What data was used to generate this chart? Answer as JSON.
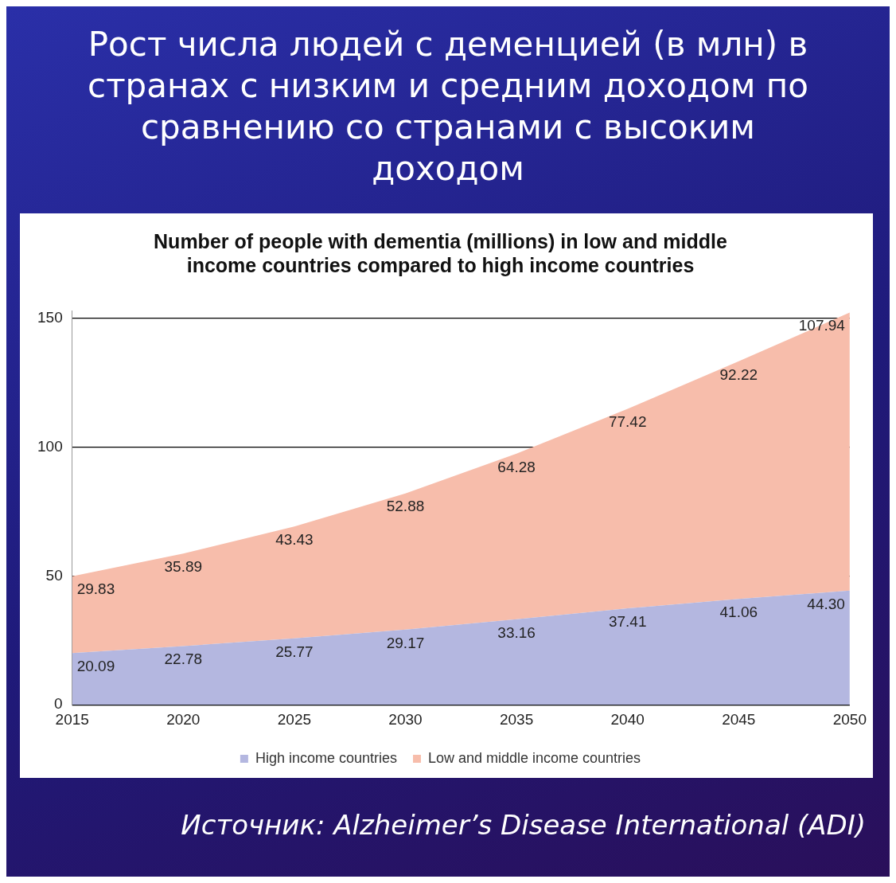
{
  "chart_data": {
    "type": "area",
    "title": "Рост числа людей с деменцией (в млн) в странах с низким и средним доходом по сравнению со странами с высоким доходом",
    "subtitle": "Number of people with dementia (millions) in low and middle income countries compared to high income countries",
    "annotations": [
      "Источник: Alzheimer’s Disease International (ADI)"
    ],
    "categories": [
      "2015",
      "2020",
      "2025",
      "2030",
      "2035",
      "2040",
      "2045",
      "2050"
    ],
    "stacked": true,
    "series": [
      {
        "name": "High income countries",
        "color": "#b4b7e0",
        "values": [
          20.09,
          22.78,
          25.77,
          29.17,
          33.16,
          37.41,
          41.06,
          44.3
        ],
        "value_labels": [
          "20.09",
          "22.78",
          "25.77",
          "29.17",
          "33.16",
          "37.41",
          "41.06",
          "44.30"
        ]
      },
      {
        "name": "Low and middle income countries",
        "color": "#f7bdab",
        "values": [
          29.83,
          35.89,
          43.43,
          52.88,
          64.28,
          77.42,
          92.22,
          107.94
        ],
        "value_labels": [
          "29.83",
          "35.89",
          "43.43",
          "52.88",
          "64.28",
          "77.42",
          "92.22",
          "107.94"
        ]
      }
    ],
    "ylim": [
      0,
      153
    ],
    "yticks": [
      0,
      50,
      100,
      150
    ],
    "grid": "y",
    "legend": "bottom"
  }
}
